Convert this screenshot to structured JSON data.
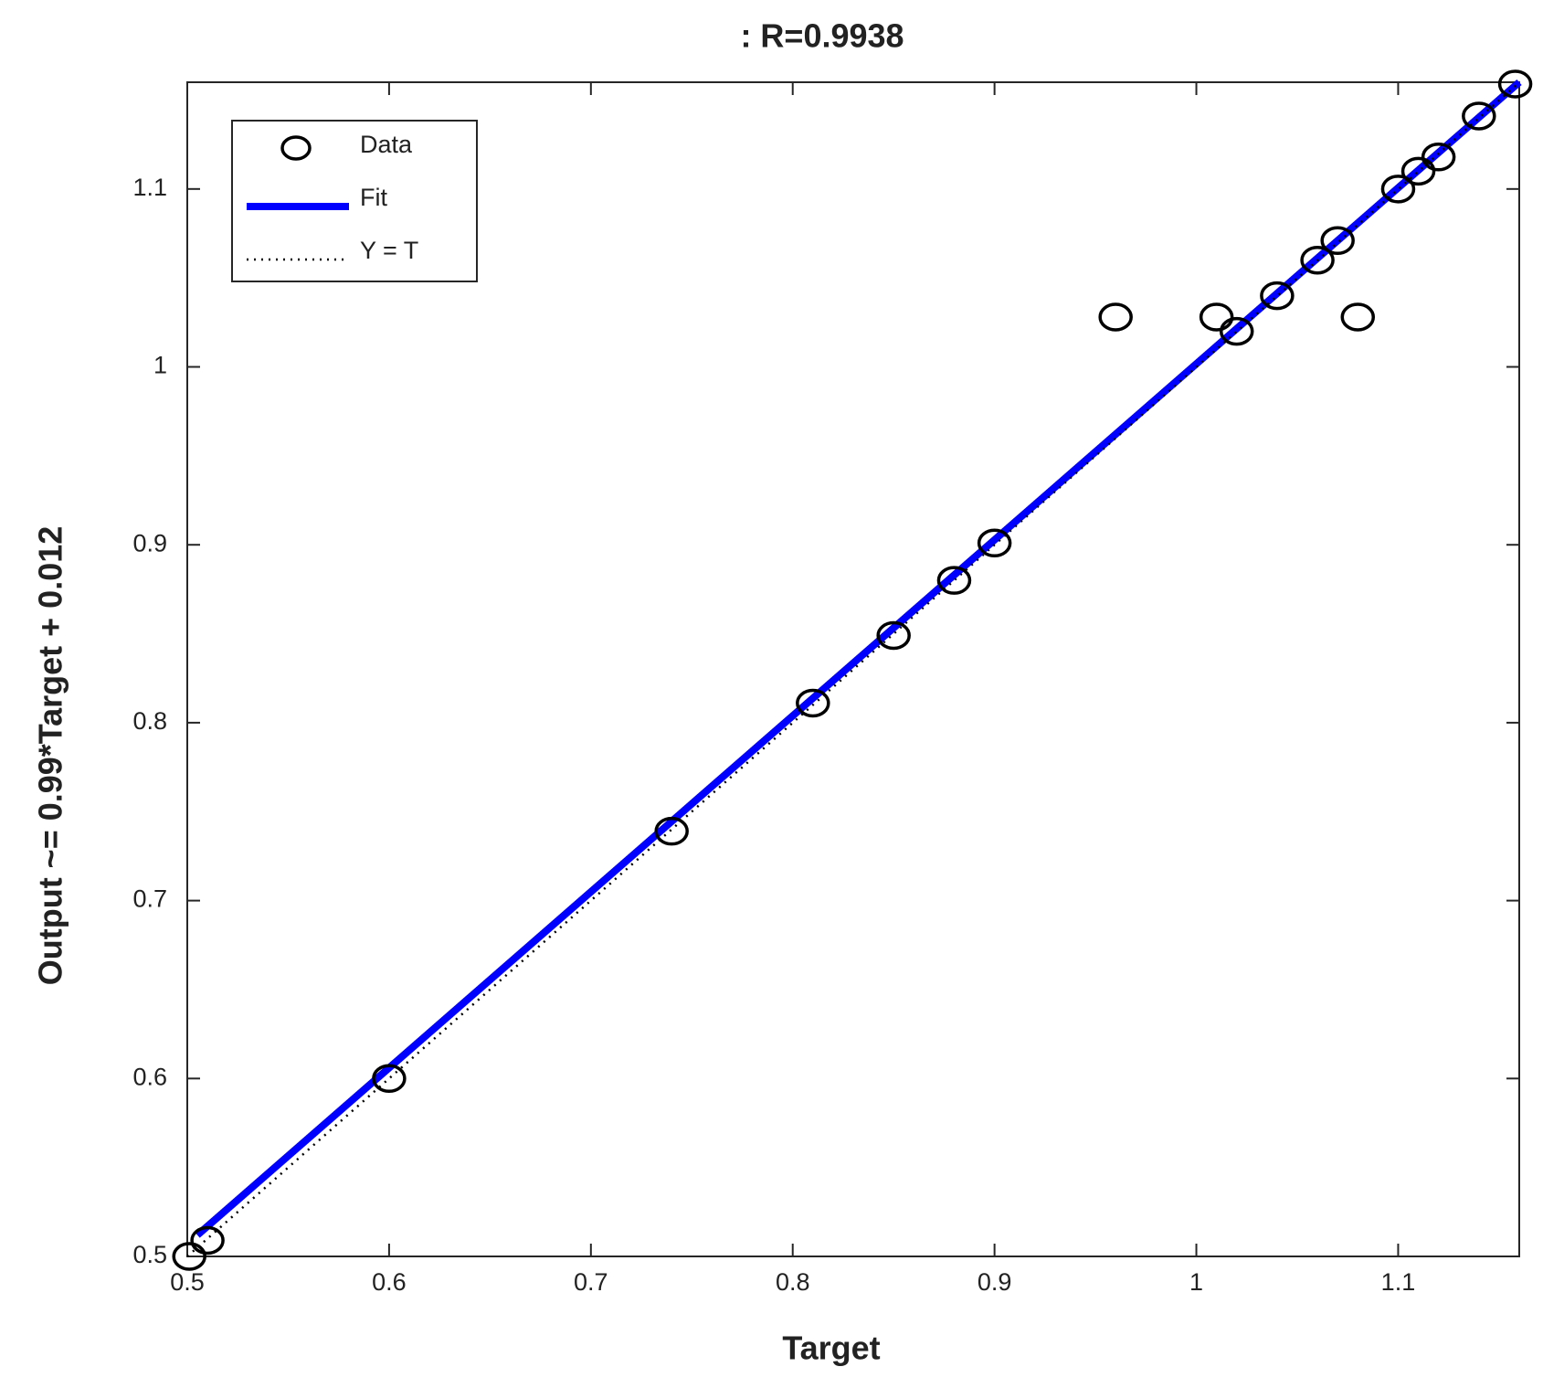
{
  "chart_data": {
    "type": "scatter",
    "title": ": R=0.9938",
    "xlabel": "Target",
    "ylabel": "Output ~= 0.99*Target + 0.012",
    "xlim": [
      0.5,
      1.16
    ],
    "ylim": [
      0.5,
      1.16
    ],
    "xticks": [
      0.5,
      0.6,
      0.7,
      0.8,
      0.9,
      1,
      1.1
    ],
    "yticks": [
      0.5,
      0.6,
      0.7,
      0.8,
      0.9,
      1,
      1.1
    ],
    "grid": false,
    "legend": "northwest",
    "series": [
      {
        "name": "Data",
        "style": "marker",
        "color": "#000000",
        "x": [
          0.501,
          0.51,
          0.6,
          0.74,
          0.81,
          0.85,
          0.88,
          0.9,
          0.96,
          1.01,
          1.02,
          1.04,
          1.06,
          1.07,
          1.08,
          1.1,
          1.11,
          1.12,
          1.14,
          1.158
        ],
        "values": [
          0.5,
          0.509,
          0.6,
          0.739,
          0.811,
          0.849,
          0.88,
          0.901,
          1.028,
          1.028,
          1.02,
          1.04,
          1.06,
          1.071,
          1.028,
          1.1,
          1.11,
          1.118,
          1.141,
          1.159
        ]
      },
      {
        "name": "Fit",
        "style": "line",
        "color": "#0000ff",
        "x": [
          0.505,
          1.16
        ],
        "values": [
          0.512,
          1.16
        ]
      },
      {
        "name": "Y = T",
        "style": "dotted",
        "color": "#000000",
        "x": [
          0.5,
          1.16
        ],
        "values": [
          0.5,
          1.16
        ]
      }
    ]
  }
}
